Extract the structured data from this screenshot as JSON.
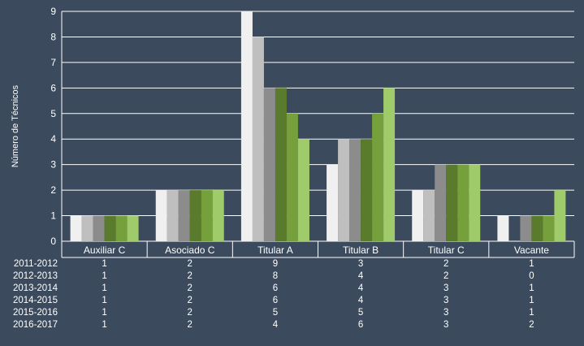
{
  "chart_data": {
    "type": "bar",
    "ylabel": "Número de Técnicos",
    "ylim": [
      0,
      9
    ],
    "yticks": [
      0,
      1,
      2,
      3,
      4,
      5,
      6,
      7,
      8,
      9
    ],
    "grid": true,
    "legend": "data-table-below",
    "categories": [
      "Auxiliar C",
      "Asociado C",
      "Titular A",
      "Titular B",
      "Titular C",
      "Vacante"
    ],
    "series": [
      {
        "name": "2011-2012",
        "color": "#f0f0f0",
        "values": [
          1,
          2,
          9,
          3,
          2,
          1
        ]
      },
      {
        "name": "2012-2013",
        "color": "#bfbfbf",
        "values": [
          1,
          2,
          8,
          4,
          2,
          0
        ]
      },
      {
        "name": "2013-2014",
        "color": "#8c8c8c",
        "values": [
          1,
          2,
          6,
          4,
          3,
          1
        ]
      },
      {
        "name": "2014-2015",
        "color": "#5a7a2c",
        "values": [
          1,
          2,
          6,
          4,
          3,
          1
        ]
      },
      {
        "name": "2015-2016",
        "color": "#76a03b",
        "values": [
          1,
          2,
          5,
          5,
          3,
          1
        ]
      },
      {
        "name": "2016-2017",
        "color": "#9fcb6b",
        "values": [
          1,
          2,
          4,
          6,
          3,
          2
        ]
      }
    ]
  }
}
